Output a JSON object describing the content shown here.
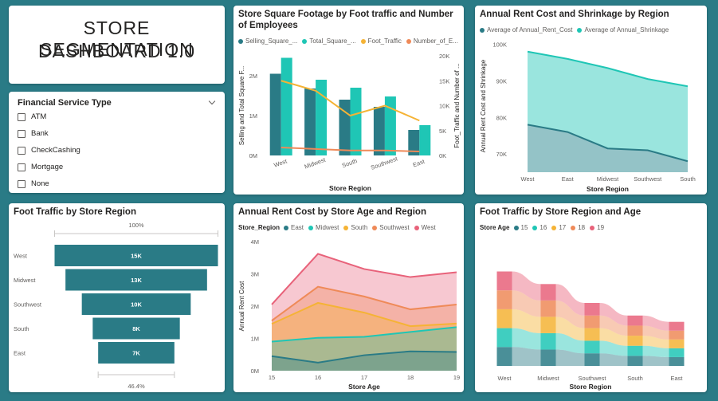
{
  "dashboard_title_line1": "STORE SEGMENTATION",
  "dashboard_title_line2": "DASHBOARD 1.0",
  "slicer": {
    "title": "Financial Service Type",
    "options": [
      "ATM",
      "Bank",
      "CheckCashing",
      "Mortgage",
      "None"
    ]
  },
  "colors": {
    "dark_teal": "#2a7b86",
    "teal": "#1fc6b5",
    "yellow": "#f5b335",
    "orange": "#ef8a58",
    "pink": "#e8627a",
    "bg": "#2a7b86"
  },
  "chart_data": [
    {
      "id": "combo",
      "type": "bar",
      "title": "Store Square Footage by Foot traffic and Number of Employees",
      "categories": [
        "West",
        "Midwest",
        "South",
        "Southwest",
        "East"
      ],
      "legend": [
        "Selling_Square_...",
        "Total_Square_...",
        "Foot_Traffic",
        "Number_of_E..."
      ],
      "series": [
        {
          "name": "Selling_Square_Footage",
          "values": [
            2050000,
            1680000,
            1400000,
            1220000,
            640000
          ]
        },
        {
          "name": "Total_Square_Footage",
          "values": [
            2450000,
            1900000,
            1700000,
            1480000,
            760000
          ]
        },
        {
          "name": "Foot_Traffic",
          "values": [
            15000,
            13000,
            8000,
            10000,
            7000
          ],
          "axis": "right"
        },
        {
          "name": "Number_of_Employees",
          "values": [
            1600,
            1300,
            1000,
            1000,
            800
          ],
          "axis": "right"
        }
      ],
      "ylabel": "Selling and Total Square F...",
      "y2label": "Foot_Traffic and Number of ...",
      "xlabel": "Store Region",
      "yticks": [
        "0M",
        "1M",
        "2M"
      ],
      "y2ticks": [
        "0K",
        "5K",
        "10K",
        "15K",
        "20K"
      ],
      "ylim": [
        0,
        2500000
      ],
      "y2lim": [
        0,
        20000
      ]
    },
    {
      "id": "rent_shrink",
      "type": "area",
      "title": "Annual Rent Cost and Shrinkage by Region",
      "legend": [
        "Average of Annual_Rent_Cost",
        "Average of Annual_Shrinkage"
      ],
      "categories": [
        "West",
        "East",
        "Midwest",
        "Southwest",
        "South"
      ],
      "series": [
        {
          "name": "Average of Annual_Rent_Cost",
          "values": [
            78000,
            76000,
            71500,
            71000,
            68000
          ]
        },
        {
          "name": "Average of Annual_Shrinkage",
          "values": [
            98000,
            96000,
            93500,
            90500,
            88500
          ]
        }
      ],
      "ylabel": "Annual Rent Cost and Shrinkage",
      "xlabel": "Store Region",
      "yticks": [
        "70K",
        "80K",
        "90K",
        "100K"
      ],
      "ylim": [
        65000,
        101000
      ]
    },
    {
      "id": "funnel",
      "type": "bar",
      "title": "Foot Traffic by Store Region",
      "categories": [
        "West",
        "Midwest",
        "Southwest",
        "South",
        "East"
      ],
      "values": [
        15000,
        13000,
        10000,
        8000,
        7000
      ],
      "labels": [
        "15K",
        "13K",
        "10K",
        "8K",
        "7K"
      ],
      "top_pct": "100%",
      "bottom_pct": "46.4%"
    },
    {
      "id": "age_region",
      "type": "area",
      "title": "Annual Rent Cost by Store Age and Region",
      "legend_title": "Store_Region",
      "legend": [
        "East",
        "Midwest",
        "South",
        "Southwest",
        "West"
      ],
      "categories": [
        "15",
        "16",
        "17",
        "18",
        "19"
      ],
      "series": [
        {
          "name": "East",
          "values": [
            450000,
            250000,
            480000,
            600000,
            580000
          ]
        },
        {
          "name": "Midwest",
          "values": [
            900000,
            1020000,
            1050000,
            1200000,
            1350000
          ]
        },
        {
          "name": "South",
          "values": [
            1450000,
            2100000,
            1800000,
            1380000,
            1460000
          ]
        },
        {
          "name": "Southwest",
          "values": [
            1550000,
            2600000,
            2300000,
            1900000,
            2050000
          ]
        },
        {
          "name": "West",
          "values": [
            2050000,
            3620000,
            3150000,
            2900000,
            3050000
          ]
        }
      ],
      "ylabel": "Annual Rent Cost",
      "xlabel": "Store Age",
      "yticks": [
        "0M",
        "1M",
        "2M",
        "3M",
        "4M"
      ],
      "ylim": [
        0,
        4000000
      ]
    },
    {
      "id": "ribbon",
      "type": "bar",
      "title": "Foot Traffic by Store Region and Age",
      "legend_title": "Store Age",
      "legend": [
        "15",
        "16",
        "17",
        "18",
        "19"
      ],
      "categories": [
        "West",
        "Midwest",
        "Southwest",
        "South",
        "East"
      ],
      "xlabel": "Store Region",
      "series": [
        {
          "name": "15",
          "values": [
            3000,
            2600,
            2000,
            1600,
            1400
          ]
        },
        {
          "name": "16",
          "values": [
            3000,
            2600,
            2000,
            1600,
            1400
          ]
        },
        {
          "name": "17",
          "values": [
            3000,
            2600,
            2000,
            1600,
            1400
          ]
        },
        {
          "name": "18",
          "values": [
            3000,
            2600,
            2000,
            1600,
            1400
          ]
        },
        {
          "name": "19",
          "values": [
            3000,
            2600,
            2000,
            1600,
            1400
          ]
        }
      ]
    }
  ]
}
